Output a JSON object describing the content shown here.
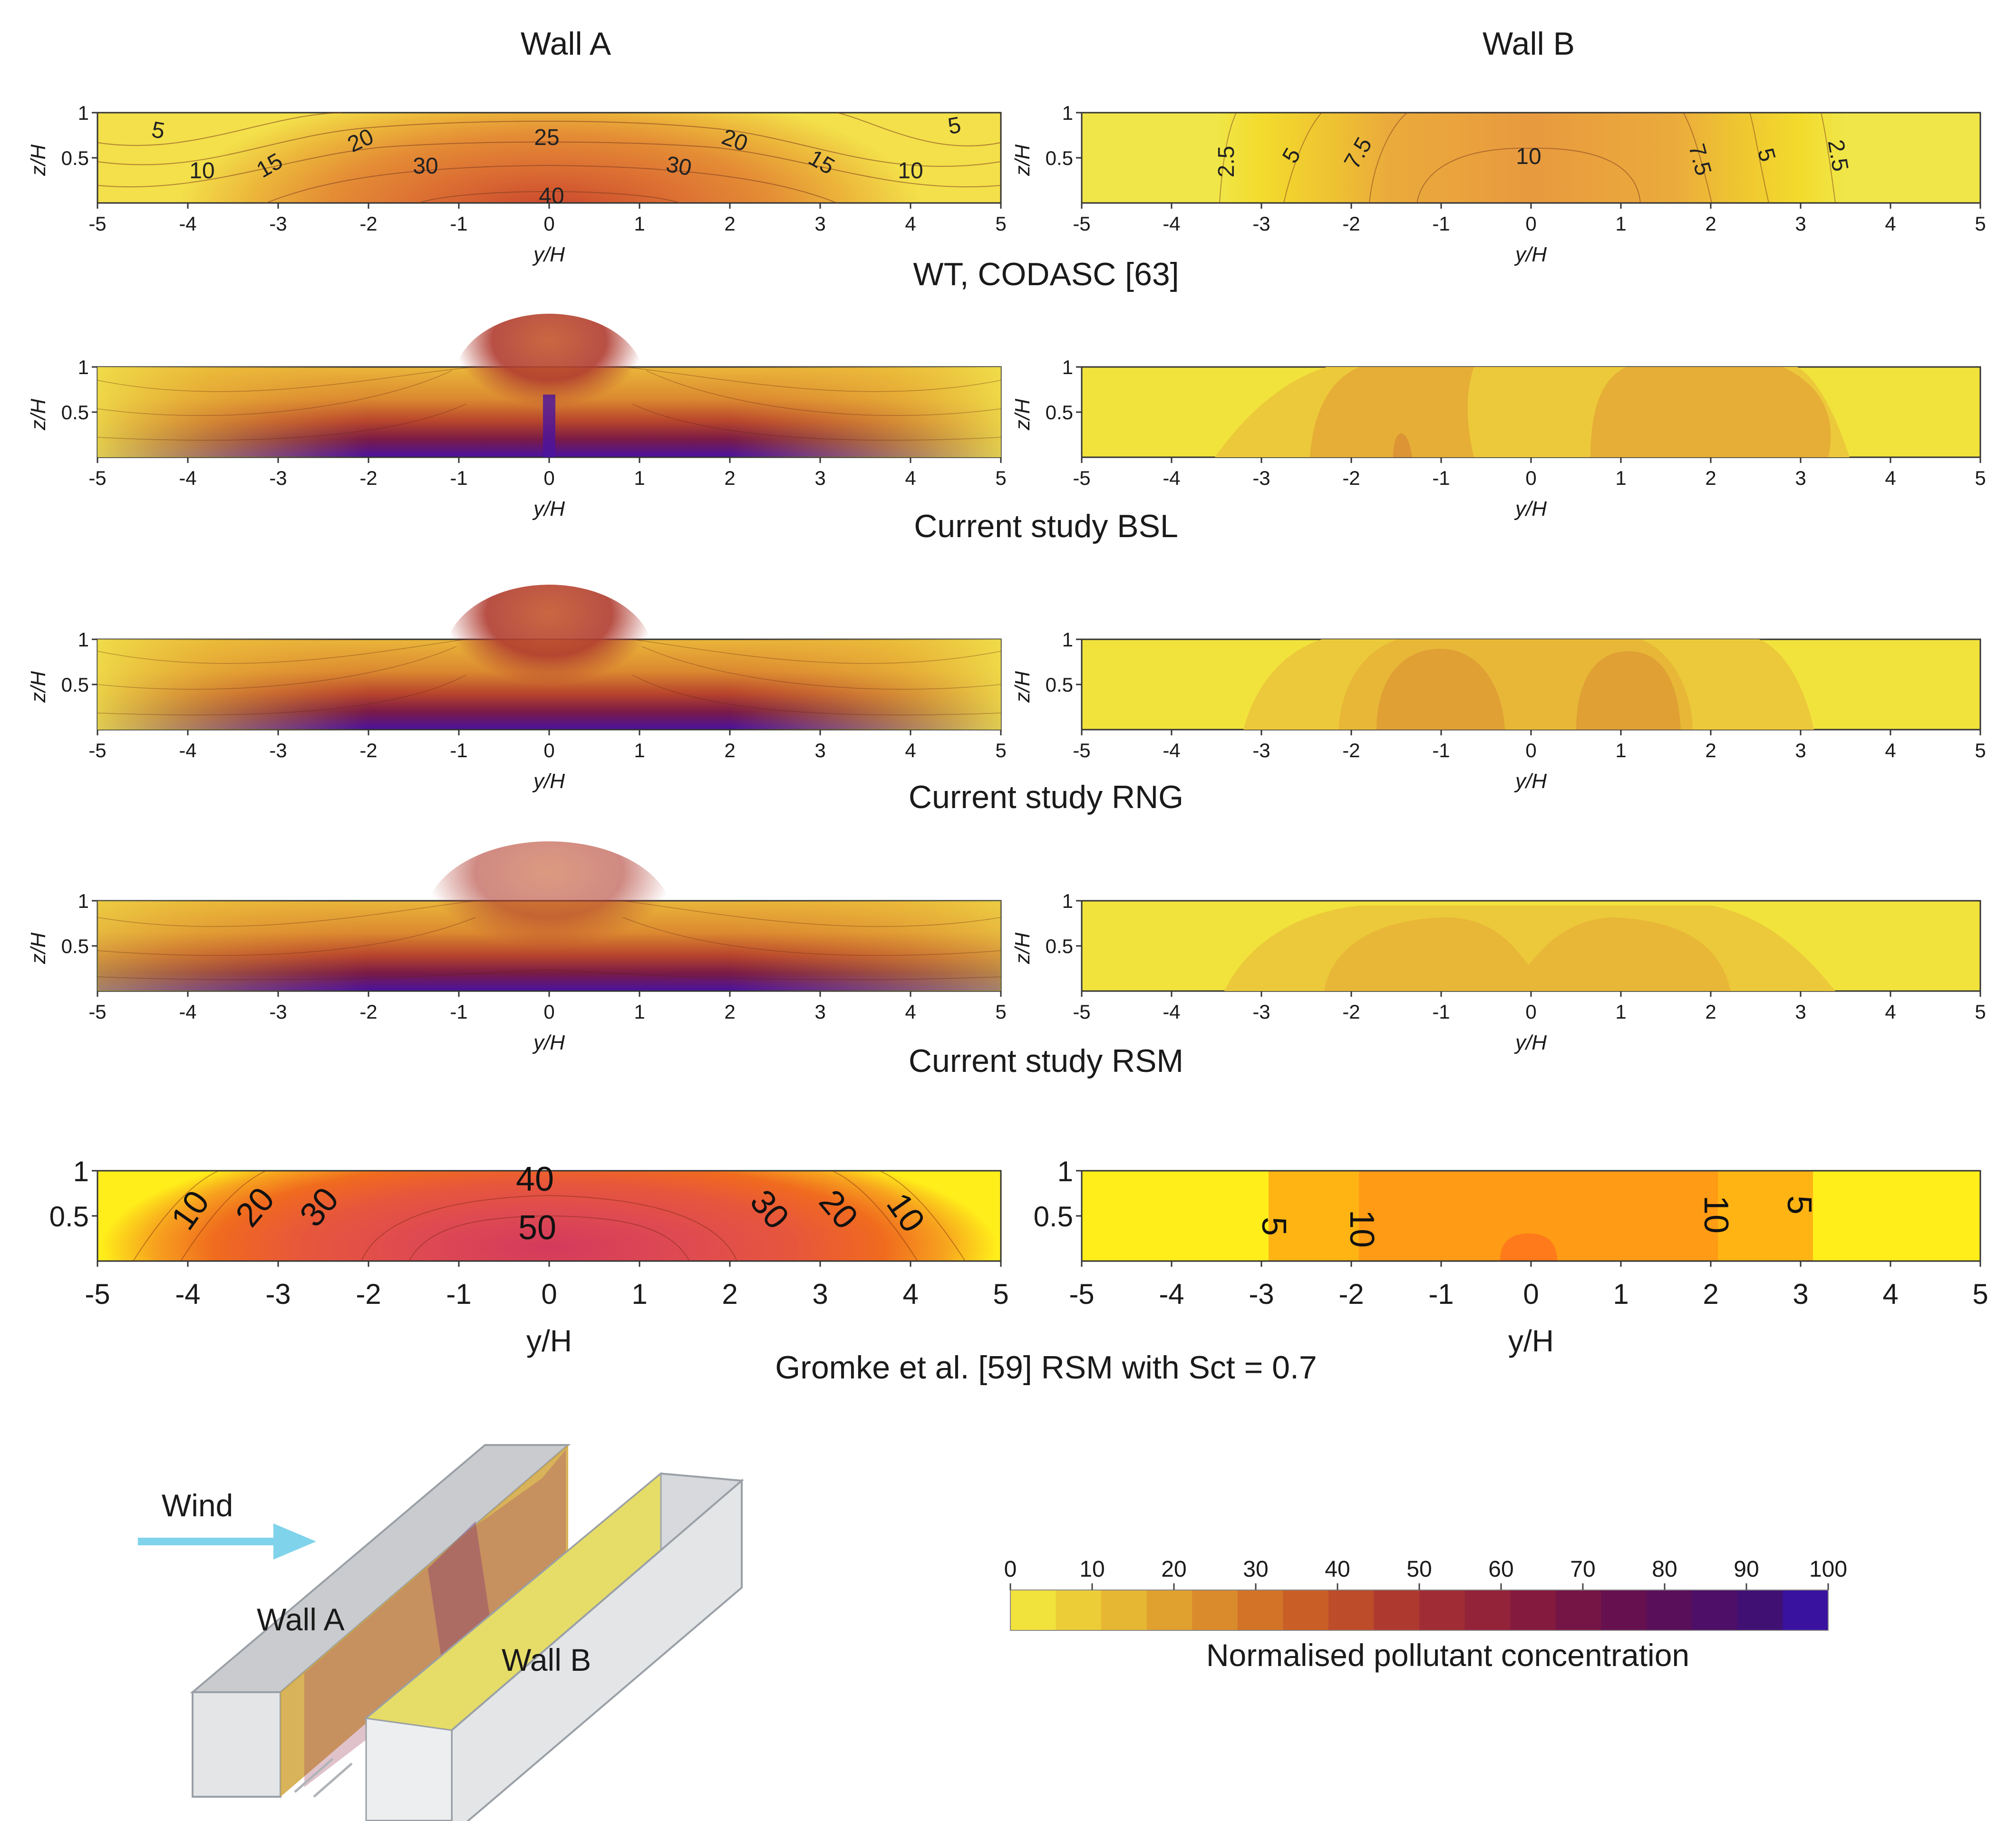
{
  "titles": {
    "wall_a": "Wall A",
    "wall_b": "Wall B"
  },
  "rows": [
    {
      "title": "WT, CODASC [63]"
    },
    {
      "title": "Current study BSL"
    },
    {
      "title": "Current study RNG"
    },
    {
      "title": "Current study RSM"
    },
    {
      "title": "Gromke et al. [59] RSM with Sct = 0.7"
    }
  ],
  "axes": {
    "xlabel": "y/H",
    "ylabel": "z/H",
    "xticks": [
      "-5",
      "-4",
      "-3",
      "-2",
      "-1",
      "0",
      "1",
      "2",
      "3",
      "4",
      "5"
    ],
    "yticks": [
      "1",
      "0.5"
    ]
  },
  "contour_labels": {
    "wt_wall_a": [
      "5",
      "10",
      "15",
      "20",
      "25",
      "30",
      "40",
      "30",
      "20",
      "15",
      "10",
      "5"
    ],
    "wt_wall_b": [
      "2.5",
      "5",
      "7.5",
      "10",
      "7.5",
      "5",
      "2.5"
    ],
    "gromke_wall_a": [
      "10",
      "20",
      "30",
      "40",
      "50",
      "30",
      "20",
      "10"
    ],
    "gromke_wall_b": [
      "5",
      "10",
      "10",
      "5"
    ]
  },
  "colorbar": {
    "title": "Normalised pollutant concentration",
    "ticks": [
      "0",
      "10",
      "20",
      "30",
      "40",
      "50",
      "60",
      "70",
      "80",
      "90",
      "100"
    ],
    "colors": [
      "#f2e23c",
      "#eccd37",
      "#e6b733",
      "#e0a12f",
      "#da8b2b",
      "#d27327",
      "#c95f27",
      "#bc4c2a",
      "#ae3a2f",
      "#a02d35",
      "#922339",
      "#841b3f",
      "#751546",
      "#67104f",
      "#5a0f5a",
      "#4d0f67",
      "#401173",
      "#3a12a0"
    ]
  },
  "diagram": {
    "wind": "Wind",
    "wall_a": "Wall A",
    "wall_b": "Wall B"
  },
  "chart_data": [
    {
      "type": "heatmap",
      "title": "WT, CODASC [63] — Wall A",
      "xlabel": "y/H",
      "ylabel": "z/H",
      "xlim": [
        -5,
        5
      ],
      "ylim": [
        0,
        1
      ],
      "contour_levels": [
        5,
        10,
        15,
        20,
        25,
        30,
        40
      ],
      "peak_value": 40,
      "peak_location_y": 0
    },
    {
      "type": "heatmap",
      "title": "WT, CODASC [63] — Wall B",
      "xlabel": "y/H",
      "ylabel": "z/H",
      "xlim": [
        -5,
        5
      ],
      "ylim": [
        0,
        1
      ],
      "contour_levels": [
        2.5,
        5,
        7.5,
        10
      ],
      "peak_value": 10,
      "peak_location_y": 0
    },
    {
      "type": "heatmap",
      "title": "Current study BSL — Wall A",
      "xlim": [
        -5,
        5
      ],
      "ylim": [
        0,
        1
      ]
    },
    {
      "type": "heatmap",
      "title": "Current study BSL — Wall B",
      "xlim": [
        -5,
        5
      ],
      "ylim": [
        0,
        1
      ]
    },
    {
      "type": "heatmap",
      "title": "Current study RNG — Wall A",
      "xlim": [
        -5,
        5
      ],
      "ylim": [
        0,
        1
      ]
    },
    {
      "type": "heatmap",
      "title": "Current study RNG — Wall B",
      "xlim": [
        -5,
        5
      ],
      "ylim": [
        0,
        1
      ]
    },
    {
      "type": "heatmap",
      "title": "Current study RSM — Wall A",
      "xlim": [
        -5,
        5
      ],
      "ylim": [
        0,
        1
      ]
    },
    {
      "type": "heatmap",
      "title": "Current study RSM — Wall B",
      "xlim": [
        -5,
        5
      ],
      "ylim": [
        0,
        1
      ]
    },
    {
      "type": "heatmap",
      "title": "Gromke et al. [59] RSM with Sct = 0.7 — Wall A",
      "xlim": [
        -5,
        5
      ],
      "ylim": [
        0,
        1
      ],
      "contour_levels": [
        10,
        20,
        30,
        40,
        50
      ],
      "peak_value": 50
    },
    {
      "type": "heatmap",
      "title": "Gromke et al. [59] RSM with Sct = 0.7 — Wall B",
      "xlim": [
        -5,
        5
      ],
      "ylim": [
        0,
        1
      ],
      "contour_levels": [
        5,
        10
      ],
      "peak_value": 10
    }
  ]
}
